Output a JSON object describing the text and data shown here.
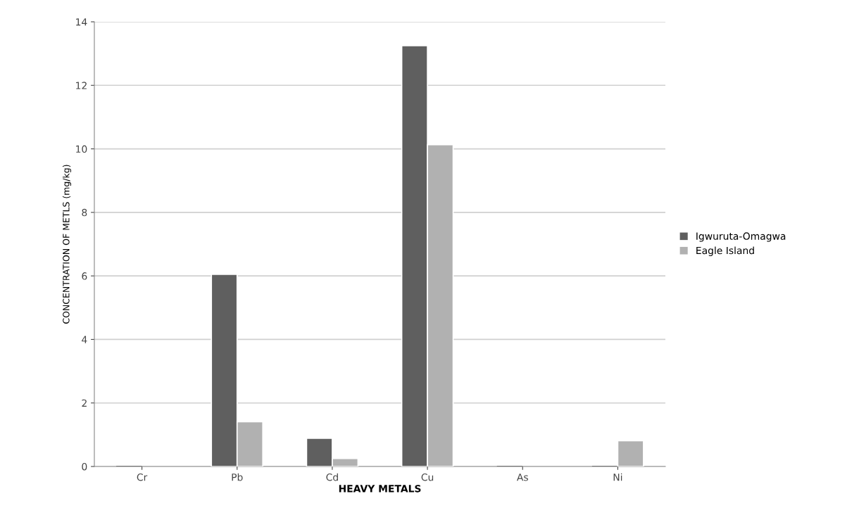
{
  "chart_data": {
    "type": "bar",
    "xlabel": "HEAVY METALS",
    "ylabel": "CONCENTRATION OF METLS (mg/kg)",
    "categories": [
      "Cr",
      "Pb",
      "Cd",
      "Cu",
      "As",
      "Ni"
    ],
    "series": [
      {
        "name": "Igwuruta-Omagwa",
        "color": "#5f5f5f",
        "values": [
          0,
          6.05,
          0.89,
          13.25,
          0,
          0
        ]
      },
      {
        "name": "Eagle Island",
        "color": "#b1b1b1",
        "values": [
          0,
          1.41,
          0.25,
          10.13,
          0,
          0.81
        ]
      }
    ],
    "ylim": [
      0,
      14
    ],
    "yticks": [
      0,
      2,
      4,
      6,
      8,
      10,
      12,
      14
    ],
    "grid": "y",
    "legend": "right"
  }
}
